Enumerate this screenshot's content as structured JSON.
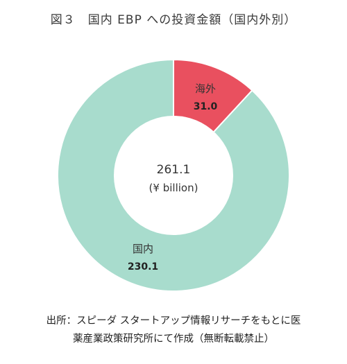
{
  "title": "図３　国内 EBP への投資金額（国内外別）",
  "chart_data": {
    "type": "pie",
    "donut": true,
    "center_value": "261.1",
    "center_unit": "(¥ billion)",
    "slices": [
      {
        "label": "海外",
        "value_label": "31.0",
        "value": 31.0,
        "color": "#e9505f"
      },
      {
        "label": "国内",
        "value_label": "230.1",
        "value": 230.1,
        "color": "#a8dccd"
      }
    ]
  },
  "source": {
    "line1": "出所：スピーダ スタートアップ情報リサーチをもとに医",
    "line2": "薬産業政策研究所にて作成（無断転載禁止）"
  }
}
